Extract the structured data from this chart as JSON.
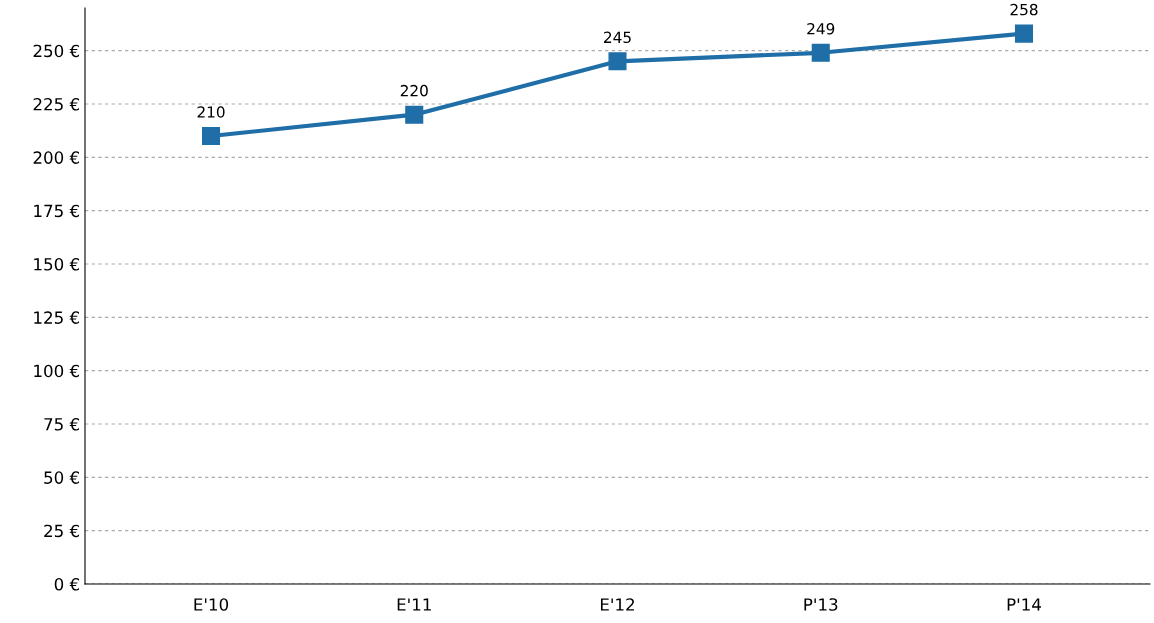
{
  "chart_data": {
    "type": "line",
    "categories": [
      "E'10",
      "E'11",
      "E'12",
      "P'13",
      "P'14"
    ],
    "series": [
      {
        "color": "#1f6ea8",
        "values": [
          210,
          220,
          245,
          249,
          258
        ]
      }
    ],
    "ylim": [
      0,
      270
    ],
    "yticks": [
      {
        "value": 0,
        "label": "0 €"
      },
      {
        "value": 25,
        "label": "25 €"
      },
      {
        "value": 50,
        "label": "50 €"
      },
      {
        "value": 75,
        "label": "75 €"
      },
      {
        "value": 100,
        "label": "100 €"
      },
      {
        "value": 125,
        "label": "125 €"
      },
      {
        "value": 150,
        "label": "150 €"
      },
      {
        "value": 175,
        "label": "175 €"
      },
      {
        "value": 200,
        "label": "200 €"
      },
      {
        "value": 225,
        "label": "225 €"
      },
      {
        "value": 250,
        "label": "250 €"
      }
    ],
    "grid": "y",
    "legend": false,
    "marker": "square",
    "line_style": "solid",
    "data_labels": true
  }
}
